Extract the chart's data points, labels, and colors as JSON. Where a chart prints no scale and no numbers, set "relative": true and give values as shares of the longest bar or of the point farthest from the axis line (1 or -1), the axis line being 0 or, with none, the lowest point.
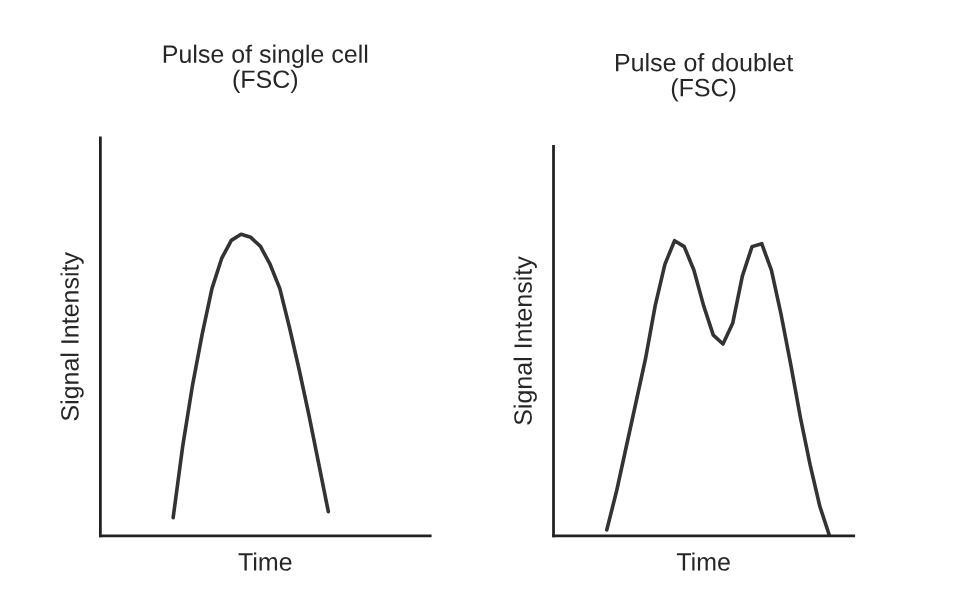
{
  "chart_data": [
    {
      "type": "line",
      "title": "Pulse of single cell\n(FSC)",
      "xlabel": "Time",
      "ylabel": "Signal Intensity",
      "relative": true,
      "tick_labels": false,
      "categories": [
        null,
        null,
        null,
        null,
        null,
        null,
        null,
        null,
        null,
        null,
        null,
        null,
        null,
        null,
        null,
        null,
        null,
        null,
        null,
        null,
        null,
        null,
        null,
        null,
        null,
        null,
        null,
        null,
        null,
        null,
        null,
        null,
        null,
        null
      ],
      "series": [
        {
          "color": "#333333",
          "values": [
            null,
            null,
            null,
            null,
            null,
            null,
            null,
            0.06,
            0.3,
            0.5,
            0.67,
            0.82,
            0.92,
            0.98,
            1.0,
            0.99,
            0.96,
            0.9,
            0.82,
            0.69,
            0.55,
            0.4,
            0.24,
            0.08,
            null,
            null,
            null,
            null,
            null,
            null,
            null,
            null,
            null,
            null
          ]
        }
      ]
    },
    {
      "type": "line",
      "title": "Pulse of doublet\n(FSC)",
      "xlabel": "Time",
      "ylabel": "Signal Intensity",
      "relative": true,
      "tick_labels": false,
      "categories": [
        null,
        null,
        null,
        null,
        null,
        null,
        null,
        null,
        null,
        null,
        null,
        null,
        null,
        null,
        null,
        null,
        null,
        null,
        null,
        null,
        null,
        null,
        null,
        null,
        null,
        null,
        null,
        null,
        null,
        null,
        null
      ],
      "series": [
        {
          "color": "#333333",
          "values": [
            null,
            null,
            null,
            null,
            null,
            0.02,
            0.15,
            0.3,
            0.45,
            0.6,
            0.78,
            0.92,
            1.0,
            0.98,
            0.9,
            0.78,
            0.68,
            0.65,
            0.72,
            0.88,
            0.98,
            0.99,
            0.9,
            0.75,
            0.58,
            0.4,
            0.24,
            0.1,
            0.0,
            null,
            null
          ]
        }
      ]
    }
  ]
}
